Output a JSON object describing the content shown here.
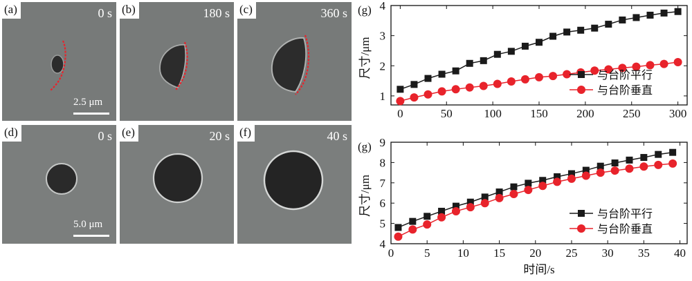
{
  "micrographs": {
    "row1": [
      {
        "label": "(a)",
        "time": "0 s"
      },
      {
        "label": "(b)",
        "time": "180 s"
      },
      {
        "label": "(c)",
        "time": "360 s"
      }
    ],
    "row2": [
      {
        "label": "(d)",
        "time": "0 s"
      },
      {
        "label": "(e)",
        "time": "20 s"
      },
      {
        "label": "(f)",
        "time": "40 s"
      }
    ],
    "scalebar1": "2.5 μm",
    "scalebar2": "5.0 μm"
  },
  "chart_data": [
    {
      "type": "line",
      "panel_label": "(g)",
      "xlabel": "",
      "ylabel": "尺寸/μm",
      "xlim": [
        -10,
        310
      ],
      "ylim": [
        0.7,
        4
      ],
      "xticks": [
        "0",
        "50",
        "100",
        "150",
        "200",
        "250",
        "300"
      ],
      "yticks": [
        "1",
        "2",
        "3",
        "4"
      ],
      "legend_position": "bottom-right",
      "series": [
        {
          "name": "与台阶平行",
          "marker": "square",
          "color": "#1a1a1a",
          "x": [
            0,
            15,
            30,
            45,
            60,
            75,
            90,
            105,
            120,
            135,
            150,
            165,
            180,
            195,
            210,
            225,
            240,
            255,
            270,
            285,
            300
          ],
          "y": [
            1.22,
            1.38,
            1.58,
            1.72,
            1.83,
            2.08,
            2.17,
            2.38,
            2.48,
            2.65,
            2.78,
            2.98,
            3.12,
            3.18,
            3.25,
            3.38,
            3.52,
            3.6,
            3.68,
            3.75,
            3.8
          ]
        },
        {
          "name": "与台阶垂直",
          "marker": "circle",
          "color": "#e8232b",
          "x": [
            0,
            15,
            30,
            45,
            60,
            75,
            90,
            105,
            120,
            135,
            150,
            165,
            180,
            195,
            210,
            225,
            240,
            255,
            270,
            285,
            300
          ],
          "y": [
            0.83,
            0.95,
            1.05,
            1.15,
            1.22,
            1.28,
            1.33,
            1.4,
            1.48,
            1.55,
            1.62,
            1.66,
            1.72,
            1.78,
            1.84,
            1.88,
            1.93,
            1.97,
            2.02,
            2.06,
            2.12
          ]
        }
      ]
    },
    {
      "type": "line",
      "panel_label": "(g)",
      "xlabel": "时间/s",
      "ylabel": "尺寸/μm",
      "xlim": [
        0,
        41
      ],
      "ylim": [
        4,
        9
      ],
      "xticks": [
        "0",
        "5",
        "10",
        "15",
        "20",
        "25",
        "30",
        "35",
        "40"
      ],
      "yticks": [
        "4",
        "5",
        "6",
        "7",
        "8",
        "9"
      ],
      "legend_position": "bottom-right",
      "series": [
        {
          "name": "与台阶平行",
          "marker": "square",
          "color": "#1a1a1a",
          "x": [
            1,
            3,
            5,
            7,
            9,
            11,
            13,
            15,
            17,
            19,
            21,
            23,
            25,
            27,
            29,
            31,
            33,
            35,
            37,
            39
          ],
          "y": [
            4.8,
            5.1,
            5.35,
            5.6,
            5.85,
            6.05,
            6.3,
            6.55,
            6.8,
            6.98,
            7.12,
            7.3,
            7.45,
            7.62,
            7.82,
            7.98,
            8.12,
            8.25,
            8.4,
            8.5
          ]
        },
        {
          "name": "与台阶垂直",
          "marker": "circle",
          "color": "#e8232b",
          "x": [
            1,
            3,
            5,
            7,
            9,
            11,
            13,
            15,
            17,
            19,
            21,
            23,
            25,
            27,
            29,
            31,
            33,
            35,
            37,
            39
          ],
          "y": [
            4.35,
            4.7,
            4.95,
            5.3,
            5.6,
            5.8,
            6.0,
            6.25,
            6.45,
            6.65,
            6.85,
            7.05,
            7.2,
            7.35,
            7.5,
            7.6,
            7.7,
            7.8,
            7.88,
            7.95
          ]
        }
      ]
    }
  ]
}
